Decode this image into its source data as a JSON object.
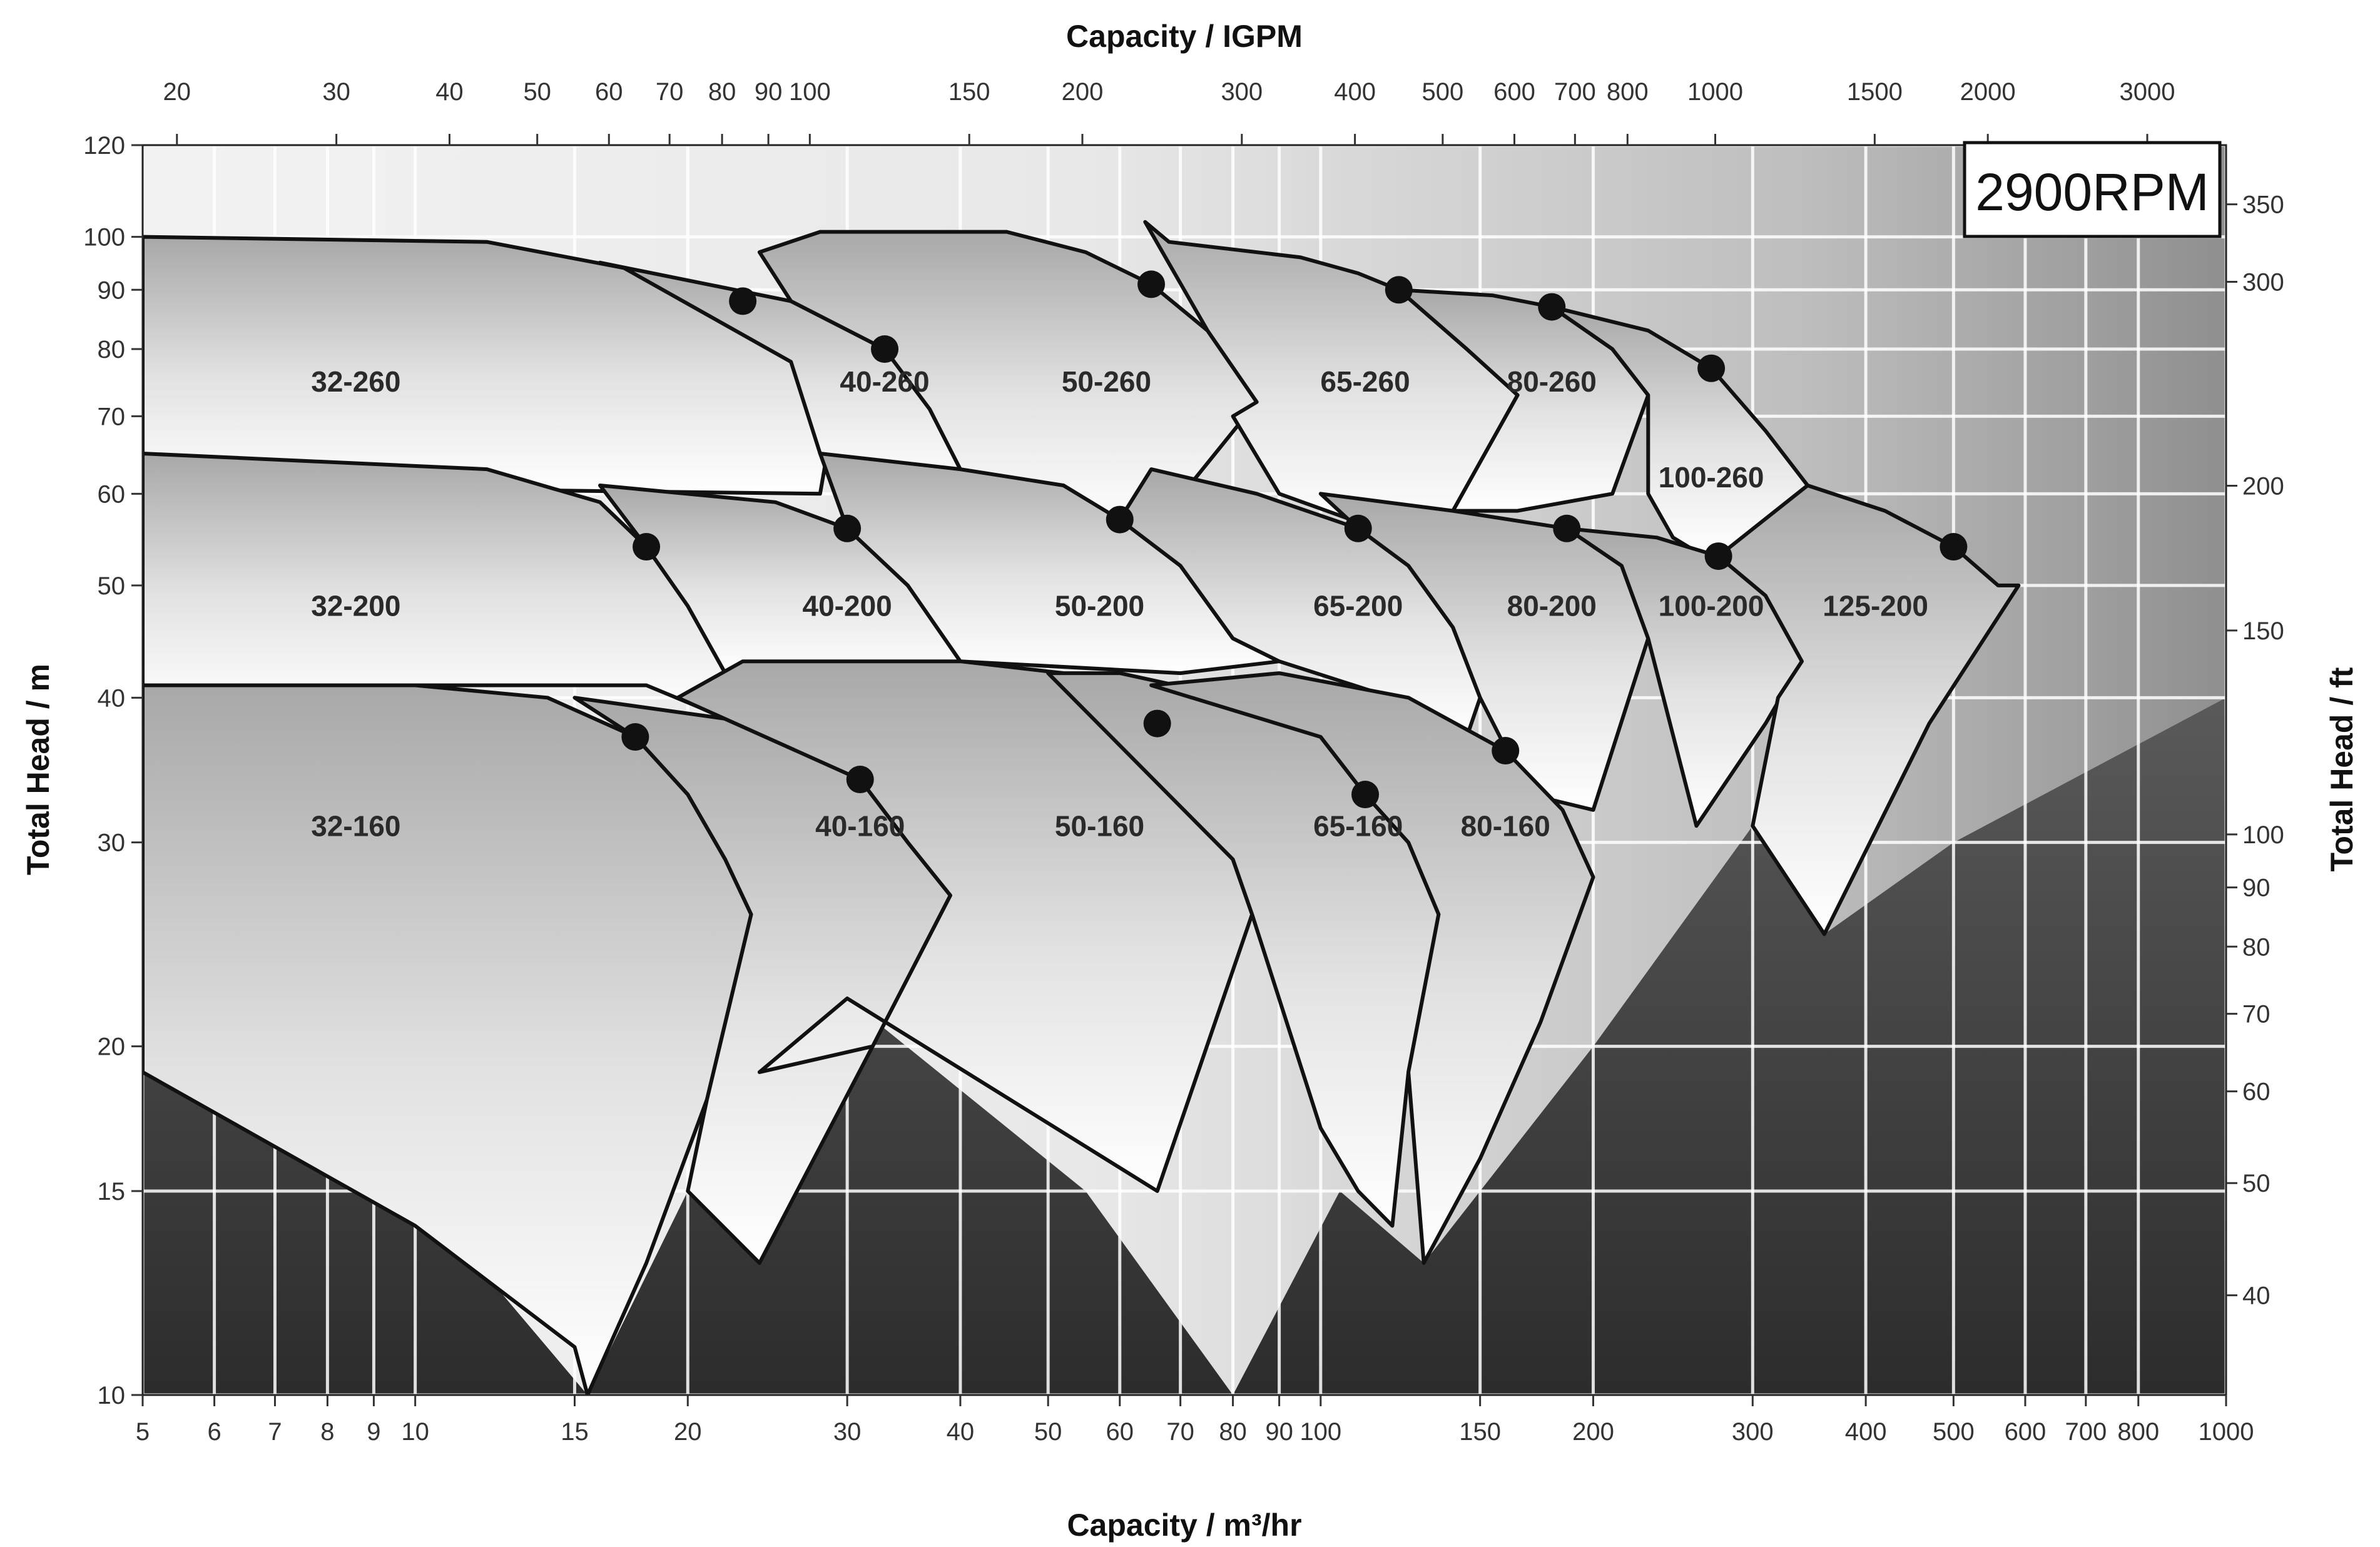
{
  "chart_data": {
    "type": "performance-curve-chart",
    "title": "",
    "speed_badge": "2900RPM",
    "x_axis": {
      "label": "Capacity / m³/hr",
      "scale": "log",
      "range": [
        5,
        1000
      ],
      "ticks": [
        5,
        6,
        7,
        8,
        9,
        10,
        15,
        20,
        30,
        40,
        50,
        60,
        70,
        80,
        90,
        100,
        150,
        200,
        300,
        400,
        500,
        600,
        700,
        800,
        1000
      ],
      "tick_labels": [
        "5",
        "6",
        "7",
        "8",
        "9",
        "10",
        "15",
        "20",
        "30",
        "40",
        "50",
        "60",
        "70",
        "80",
        "90",
        "100",
        "150",
        "200",
        "300",
        "400",
        "500",
        "600",
        "700",
        "800",
        "1000"
      ]
    },
    "x2_axis": {
      "label": "Capacity / IGPM",
      "scale": "log",
      "ticks": [
        20,
        30,
        40,
        50,
        60,
        70,
        80,
        90,
        100,
        150,
        200,
        300,
        400,
        500,
        600,
        700,
        800,
        1000,
        1500,
        2000,
        3000
      ],
      "tick_labels": [
        "20",
        "30",
        "40",
        "50",
        "60",
        "70",
        "80",
        "90",
        "100",
        "150",
        "200",
        "300",
        "400",
        "500",
        "600",
        "700",
        "800",
        "1000",
        "1500",
        "2000",
        "3000"
      ]
    },
    "y_axis": {
      "label": "Total Head / m",
      "scale": "log",
      "range": [
        10,
        120
      ],
      "ticks": [
        10,
        15,
        20,
        30,
        40,
        50,
        60,
        70,
        80,
        90,
        100,
        120
      ],
      "tick_labels": [
        "10",
        "15",
        "20",
        "30",
        "40",
        "50",
        "60",
        "70",
        "80",
        "90",
        "100",
        "120"
      ]
    },
    "y2_axis": {
      "label": "Total Head / ft",
      "scale": "log",
      "ticks": [
        40,
        50,
        60,
        70,
        80,
        90,
        100,
        150,
        200,
        300,
        350
      ],
      "tick_labels": [
        "40",
        "50",
        "60",
        "70",
        "80",
        "90",
        "100",
        "150",
        "200",
        "300",
        "350"
      ]
    },
    "grid": true,
    "pump_regions": [
      {
        "model": "32-260",
        "label_at": [
          8.6,
          75
        ],
        "best_efficiency_point": [
          23,
          88
        ],
        "outline": [
          [
            5,
            100
          ],
          [
            12,
            99
          ],
          [
            17,
            94
          ],
          [
            23,
            88
          ],
          [
            26,
            78
          ],
          [
            28.5,
            65
          ],
          [
            28,
            60
          ],
          [
            5,
            61
          ]
        ]
      },
      {
        "model": "40-260",
        "label_at": [
          33,
          75
        ],
        "best_efficiency_point": [
          33,
          80
        ],
        "outline": [
          [
            16,
            95
          ],
          [
            26,
            88
          ],
          [
            33,
            80
          ],
          [
            37,
            71
          ],
          [
            40,
            63
          ],
          [
            34,
            61
          ],
          [
            28,
            65
          ],
          [
            26,
            78
          ],
          [
            17,
            94
          ]
        ]
      },
      {
        "model": "50-260",
        "label_at": [
          58,
          75
        ],
        "best_efficiency_point": [
          65,
          91
        ],
        "outline": [
          [
            24,
            97
          ],
          [
            28,
            101
          ],
          [
            45,
            101
          ],
          [
            55,
            97
          ],
          [
            65,
            91
          ],
          [
            75,
            83
          ],
          [
            85,
            72
          ],
          [
            68,
            58
          ],
          [
            56,
            56
          ],
          [
            40,
            63
          ],
          [
            37,
            71
          ],
          [
            33,
            80
          ],
          [
            26,
            88
          ]
        ]
      },
      {
        "model": "65-260",
        "label_at": [
          112,
          75
        ],
        "best_efficiency_point": [
          122,
          90
        ],
        "outline": [
          [
            64,
            103
          ],
          [
            68,
            99
          ],
          [
            95,
            96
          ],
          [
            110,
            93
          ],
          [
            122,
            90
          ],
          [
            145,
            80
          ],
          [
            165,
            73
          ],
          [
            140,
            58
          ],
          [
            115,
            56
          ],
          [
            90,
            60
          ],
          [
            80,
            70
          ],
          [
            85,
            72
          ],
          [
            75,
            83
          ]
        ]
      },
      {
        "model": "80-260",
        "label_at": [
          180,
          75
        ],
        "best_efficiency_point": [
          180,
          87
        ],
        "outline": [
          [
            122,
            90
          ],
          [
            155,
            89
          ],
          [
            180,
            87
          ],
          [
            210,
            80
          ],
          [
            230,
            73
          ],
          [
            210,
            60
          ],
          [
            165,
            58
          ],
          [
            140,
            58
          ],
          [
            165,
            73
          ],
          [
            145,
            80
          ]
        ]
      },
      {
        "model": "100-260",
        "label_at": [
          270,
          62
        ],
        "best_efficiency_point": [
          270,
          77
        ],
        "outline": [
          [
            180,
            87
          ],
          [
            230,
            83
          ],
          [
            270,
            77
          ],
          [
            310,
            68
          ],
          [
            345,
            61
          ],
          [
            310,
            55
          ],
          [
            265,
            53
          ],
          [
            245,
            55
          ],
          [
            230,
            60
          ],
          [
            230,
            73
          ],
          [
            210,
            80
          ]
        ]
      },
      {
        "model": "32-200",
        "label_at": [
          8.6,
          48
        ],
        "best_efficiency_point": [
          18,
          54
        ],
        "outline": [
          [
            5,
            65
          ],
          [
            12,
            63
          ],
          [
            16,
            59
          ],
          [
            18,
            54
          ],
          [
            20,
            48
          ],
          [
            22,
            42
          ],
          [
            24,
            39
          ],
          [
            21,
            39
          ],
          [
            18,
            41
          ],
          [
            5,
            41
          ]
        ]
      },
      {
        "model": "40-200",
        "label_at": [
          30,
          48
        ],
        "best_efficiency_point": [
          30,
          56
        ],
        "outline": [
          [
            16,
            61
          ],
          [
            25,
            59
          ],
          [
            30,
            56
          ],
          [
            35,
            50
          ],
          [
            40,
            43
          ],
          [
            38,
            42
          ],
          [
            22,
            42
          ],
          [
            20,
            48
          ],
          [
            18,
            54
          ]
        ]
      },
      {
        "model": "50-200",
        "label_at": [
          57,
          48
        ],
        "best_efficiency_point": [
          60,
          57
        ],
        "outline": [
          [
            28,
            65
          ],
          [
            40,
            63
          ],
          [
            52,
            61
          ],
          [
            60,
            57
          ],
          [
            70,
            52
          ],
          [
            80,
            45
          ],
          [
            90,
            43
          ],
          [
            70,
            42
          ],
          [
            40,
            43
          ],
          [
            35,
            50
          ],
          [
            30,
            56
          ]
        ]
      },
      {
        "model": "65-200",
        "label_at": [
          110,
          48
        ],
        "best_efficiency_point": [
          110,
          56
        ],
        "outline": [
          [
            65,
            63
          ],
          [
            85,
            60
          ],
          [
            110,
            56
          ],
          [
            125,
            52
          ],
          [
            140,
            46
          ],
          [
            150,
            40
          ],
          [
            145,
            37
          ],
          [
            120,
            40
          ],
          [
            90,
            43
          ],
          [
            80,
            45
          ],
          [
            70,
            52
          ],
          [
            60,
            57
          ]
        ]
      },
      {
        "model": "80-200",
        "label_at": [
          180,
          48
        ],
        "best_efficiency_point": [
          187,
          56
        ],
        "outline": [
          [
            100,
            60
          ],
          [
            140,
            58
          ],
          [
            187,
            56
          ],
          [
            215,
            52
          ],
          [
            230,
            45
          ],
          [
            200,
            32
          ],
          [
            170,
            33
          ],
          [
            150,
            40
          ],
          [
            140,
            46
          ],
          [
            125,
            52
          ],
          [
            110,
            56
          ]
        ]
      },
      {
        "model": "100-200",
        "label_at": [
          270,
          48
        ],
        "best_efficiency_point": [
          275,
          53
        ],
        "outline": [
          [
            187,
            56
          ],
          [
            235,
            55
          ],
          [
            275,
            53
          ],
          [
            310,
            49
          ],
          [
            340,
            43
          ],
          [
            310,
            38
          ],
          [
            260,
            31
          ],
          [
            230,
            45
          ],
          [
            215,
            52
          ]
        ]
      },
      {
        "model": "125-200",
        "label_at": [
          410,
          48
        ],
        "best_efficiency_point": [
          500,
          54
        ],
        "outline": [
          [
            345,
            61
          ],
          [
            420,
            58
          ],
          [
            500,
            54
          ],
          [
            560,
            50
          ],
          [
            590,
            50
          ],
          [
            470,
            38
          ],
          [
            360,
            25
          ],
          [
            300,
            31
          ],
          [
            320,
            40
          ],
          [
            340,
            43
          ],
          [
            310,
            49
          ],
          [
            275,
            53
          ]
        ]
      },
      {
        "model": "32-160",
        "label_at": [
          8.6,
          31
        ],
        "best_efficiency_point": [
          17.5,
          37
        ],
        "outline": [
          [
            5,
            41
          ],
          [
            10,
            41
          ],
          [
            14,
            40
          ],
          [
            17.5,
            37
          ],
          [
            20,
            33
          ],
          [
            22,
            29
          ],
          [
            23.5,
            26
          ],
          [
            21,
            18
          ],
          [
            18,
            13
          ],
          [
            15.5,
            10
          ],
          [
            15,
            11
          ],
          [
            10,
            14
          ],
          [
            5,
            19
          ]
        ]
      },
      {
        "model": "40-160",
        "label_at": [
          31,
          31
        ],
        "best_efficiency_point": [
          31,
          34
        ],
        "outline": [
          [
            15,
            40
          ],
          [
            24,
            38
          ],
          [
            31,
            34
          ],
          [
            35,
            30
          ],
          [
            39,
            27
          ],
          [
            32,
            20
          ],
          [
            24,
            13
          ],
          [
            20,
            15
          ],
          [
            21,
            18
          ],
          [
            23.5,
            26
          ],
          [
            22,
            29
          ],
          [
            20,
            33
          ],
          [
            17.5,
            37
          ]
        ]
      },
      {
        "model": "50-160",
        "label_at": [
          57,
          31
        ],
        "best_efficiency_point": [
          66,
          38
        ],
        "outline": [
          [
            19.5,
            40
          ],
          [
            23,
            43
          ],
          [
            40,
            43
          ],
          [
            52,
            42
          ],
          [
            66,
            38
          ],
          [
            75,
            33
          ],
          [
            80,
            29
          ],
          [
            84,
            26
          ],
          [
            66,
            15
          ],
          [
            30,
            22
          ],
          [
            24,
            19
          ],
          [
            32,
            20
          ],
          [
            39,
            27
          ],
          [
            35,
            30
          ],
          [
            31,
            34
          ]
        ]
      },
      {
        "model": "65-160",
        "label_at": [
          110,
          31
        ],
        "best_efficiency_point": [
          112,
          33
        ],
        "outline": [
          [
            50,
            42
          ],
          [
            60,
            42
          ],
          [
            80,
            40
          ],
          [
            100,
            37
          ],
          [
            112,
            33
          ],
          [
            125,
            30
          ],
          [
            135,
            26
          ],
          [
            125,
            19
          ],
          [
            120,
            14
          ],
          [
            110,
            15
          ],
          [
            100,
            17
          ],
          [
            84,
            26
          ],
          [
            80,
            29
          ]
        ]
      },
      {
        "model": "80-160",
        "label_at": [
          160,
          31
        ],
        "best_efficiency_point": [
          160,
          36
        ],
        "outline": [
          [
            65,
            41
          ],
          [
            90,
            42
          ],
          [
            125,
            40
          ],
          [
            160,
            36
          ],
          [
            185,
            32
          ],
          [
            200,
            28
          ],
          [
            175,
            21
          ],
          [
            150,
            16
          ],
          [
            130,
            13
          ],
          [
            125,
            19
          ],
          [
            135,
            26
          ],
          [
            125,
            30
          ],
          [
            112,
            33
          ],
          [
            100,
            37
          ]
        ]
      }
    ],
    "lower_operating_limit": [
      [
        5,
        19.5
      ],
      [
        7,
        17.5
      ],
      [
        10,
        15
      ],
      [
        15.5,
        10
      ],
      [
        20,
        15
      ],
      [
        24,
        17
      ],
      [
        30,
        22
      ],
      [
        55,
        15
      ],
      [
        80,
        10
      ],
      [
        105,
        15
      ],
      [
        130,
        13
      ],
      [
        150,
        15
      ],
      [
        200,
        20
      ],
      [
        300,
        31
      ],
      [
        360,
        25
      ],
      [
        500,
        30
      ],
      [
        1000,
        40
      ]
    ]
  }
}
